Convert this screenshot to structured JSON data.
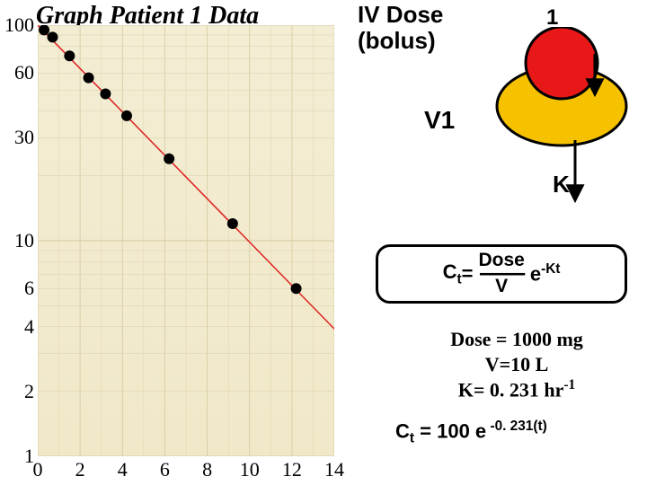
{
  "title": "Graph Patient 1 Data",
  "iv_label_line1": "IV Dose",
  "iv_label_line2": "(bolus)",
  "one_label": "1",
  "v1_label": "V1",
  "k_label": "K",
  "chart": {
    "type": "scatter-line-semilog-y",
    "background_color": "#f0e8c8",
    "grid_color": "#d9d0a8",
    "line_color": "#dd2222",
    "line_width": 1.5,
    "marker_color": "#000000",
    "marker_radius": 6,
    "xlim": [
      0,
      14
    ],
    "xticks": [
      0,
      2,
      4,
      6,
      8,
      10,
      12,
      14
    ],
    "ylim_log": [
      1,
      100
    ],
    "yticks": [
      100,
      60,
      30,
      10,
      6,
      4,
      2,
      1
    ],
    "line": {
      "x": [
        0,
        14
      ],
      "y": [
        100,
        3.9
      ]
    },
    "points": [
      {
        "x": 0.3,
        "y": 95
      },
      {
        "x": 0.7,
        "y": 88
      },
      {
        "x": 1.5,
        "y": 72
      },
      {
        "x": 2.4,
        "y": 57
      },
      {
        "x": 3.2,
        "y": 48
      },
      {
        "x": 4.2,
        "y": 38
      },
      {
        "x": 6.2,
        "y": 24
      },
      {
        "x": 9.2,
        "y": 12
      },
      {
        "x": 12.2,
        "y": 6
      }
    ],
    "tick_fontsize": 22
  },
  "compartment_diagram": {
    "oval_fill": "#f6c200",
    "oval_stroke": "#000000",
    "oval_stroke_width": 3,
    "oval_rx": 72,
    "oval_ry": 44,
    "circle_fill": "#e81818",
    "circle_stroke": "#000000",
    "circle_stroke_width": 3,
    "circle_r": 40,
    "arrow_color": "#000000",
    "arrow_width": 3
  },
  "equation": {
    "lhs_base": "C",
    "lhs_sub": "t",
    "equals": " = ",
    "numerator": "Dose",
    "dashes": "----------",
    "denominator": "V",
    "exp_base": " e",
    "exp_sup": "-Kt"
  },
  "params": {
    "dose": "Dose = 1000 mg",
    "v": "V=10 L",
    "k_prefix": "K= 0. 231 hr",
    "k_sup": "-1"
  },
  "final_eq": {
    "lhs_base": "C",
    "lhs_sub": "t",
    "mid": " =  100 e",
    "sup": " -0. 231(t)"
  }
}
